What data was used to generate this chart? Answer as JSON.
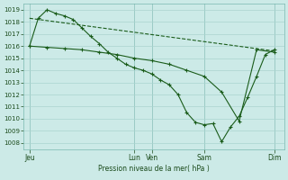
{
  "background_color": "#cceae7",
  "grid_color": "#aad4d0",
  "line_color": "#1a5c1a",
  "marker_color": "#1a5c1a",
  "xtick_labels": [
    "Jeu",
    "Lun",
    "Ven",
    "Sam",
    "Dim"
  ],
  "xtick_positions": [
    0,
    72,
    84,
    120,
    168
  ],
  "xlim": [
    -4,
    175
  ],
  "xlabel_text": "Pression niveau de la mer( hPa )",
  "ylim": [
    1007.5,
    1019.5
  ],
  "ytick_values": [
    1008,
    1009,
    1010,
    1011,
    1012,
    1013,
    1014,
    1015,
    1016,
    1017,
    1018,
    1019
  ],
  "line1_x": [
    0,
    12,
    24,
    36,
    48,
    60,
    72,
    84,
    96,
    108,
    120,
    132,
    144,
    156,
    168
  ],
  "line1_y": [
    1016.0,
    1015.9,
    1015.8,
    1015.7,
    1015.5,
    1015.3,
    1015.0,
    1014.8,
    1014.5,
    1014.0,
    1013.5,
    1012.2,
    1009.8,
    1015.7,
    1015.5
  ],
  "line2_x": [
    0,
    6,
    12,
    18,
    24,
    30,
    36,
    42,
    48,
    54,
    60,
    66,
    72,
    78,
    84,
    90,
    96,
    102,
    108,
    114,
    120,
    126,
    132,
    138,
    144,
    150,
    156,
    162,
    168
  ],
  "line2_y": [
    1016.0,
    1018.3,
    1019.0,
    1018.7,
    1018.5,
    1018.2,
    1017.5,
    1016.8,
    1016.2,
    1015.5,
    1015.0,
    1014.5,
    1014.2,
    1014.0,
    1013.7,
    1013.2,
    1012.8,
    1012.0,
    1010.5,
    1009.7,
    1009.5,
    1009.6,
    1008.1,
    1009.3,
    1010.2,
    1011.8,
    1013.5,
    1015.3,
    1015.7
  ],
  "line3_x": [
    0,
    168
  ],
  "line3_y": [
    1018.3,
    1015.6
  ],
  "vlines_x": [
    0,
    72,
    84,
    120,
    168
  ],
  "figsize": [
    3.2,
    2.0
  ],
  "dpi": 100
}
